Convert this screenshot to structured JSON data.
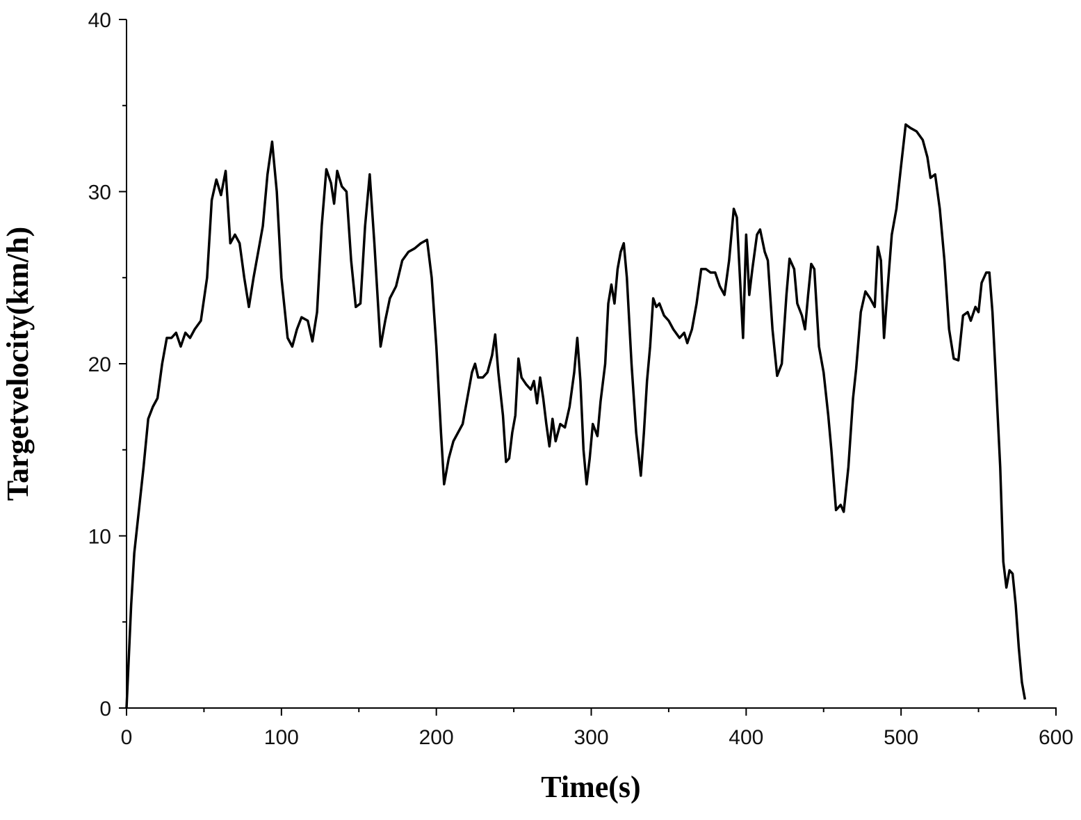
{
  "chart_data": {
    "type": "line",
    "x_label": "Time(s)",
    "y_label": "Targetvelocity(km/h)",
    "color": "#000000",
    "xlim": [
      0,
      600
    ],
    "xticks": [
      0,
      100,
      200,
      300,
      400,
      500,
      600
    ],
    "xminorticks": [
      50,
      150,
      250,
      350,
      450,
      550
    ],
    "ylim": [
      0,
      40
    ],
    "yticks": [
      0,
      10,
      20,
      30,
      40
    ],
    "yminorticks": [
      5,
      15,
      25,
      35
    ],
    "x": [
      0,
      1,
      3,
      5,
      8,
      11,
      14,
      17,
      20,
      23,
      26,
      29,
      32,
      35,
      38,
      41,
      44,
      48,
      52,
      55,
      58,
      61,
      64,
      67,
      70,
      73,
      76,
      79,
      82,
      85,
      88,
      91,
      94,
      97,
      100,
      104,
      107,
      110,
      113,
      117,
      120,
      123,
      126,
      129,
      132,
      134,
      136,
      139,
      142,
      145,
      148,
      151,
      154,
      157,
      160,
      164,
      167,
      170,
      174,
      178,
      182,
      186,
      190,
      194,
      197,
      200,
      203,
      205,
      208,
      211,
      214,
      217,
      220,
      223,
      225,
      227,
      230,
      233,
      236,
      238,
      240,
      243,
      245,
      247,
      249,
      251,
      253,
      255,
      258,
      261,
      263,
      265,
      267,
      269,
      271,
      273,
      275,
      277,
      280,
      283,
      286,
      289,
      291,
      293,
      295,
      297,
      299,
      301,
      304,
      306,
      309,
      311,
      313,
      315,
      317,
      319,
      321,
      323,
      326,
      329,
      332,
      334,
      336,
      338,
      340,
      342,
      344,
      347,
      350,
      353,
      357,
      360,
      362,
      365,
      368,
      371,
      374,
      377,
      380,
      383,
      386,
      389,
      392,
      394,
      396,
      398,
      400,
      402,
      404,
      407,
      409,
      412,
      414,
      417,
      420,
      423,
      426,
      428,
      431,
      433,
      436,
      438,
      440,
      442,
      444,
      447,
      450,
      453,
      455,
      458,
      461,
      463,
      466,
      469,
      471,
      474,
      477,
      480,
      483,
      485,
      487,
      489,
      491,
      494,
      497,
      500,
      503,
      506,
      510,
      514,
      517,
      519,
      522,
      525,
      528,
      531,
      534,
      537,
      540,
      543,
      545,
      548,
      550,
      552,
      555,
      557,
      559,
      561,
      564,
      566,
      568,
      570,
      572,
      574,
      576,
      578,
      580
    ],
    "values": [
      0,
      2,
      6,
      9,
      11.5,
      14,
      16.8,
      17.5,
      18,
      20,
      21.5,
      21.5,
      21.8,
      21,
      21.8,
      21.5,
      22,
      22.5,
      25,
      29.5,
      30.7,
      29.8,
      31.2,
      27,
      27.5,
      27,
      25,
      23.3,
      25,
      26.5,
      28,
      31,
      32.9,
      30,
      25,
      21.5,
      21,
      22,
      22.7,
      22.5,
      21.3,
      23,
      28,
      31.3,
      30.5,
      29.3,
      31.2,
      30.3,
      30,
      26,
      23.3,
      23.5,
      28,
      31,
      27,
      21,
      22.5,
      23.8,
      24.5,
      26,
      26.5,
      26.7,
      27,
      27.2,
      25,
      21,
      16,
      13,
      14.5,
      15.5,
      16,
      16.5,
      18,
      19.5,
      20,
      19.2,
      19.2,
      19.5,
      20.5,
      21.7,
      19.5,
      17,
      14.3,
      14.5,
      16,
      17,
      20.3,
      19.2,
      18.8,
      18.5,
      19,
      17.7,
      19.2,
      18,
      16.5,
      15.2,
      16.8,
      15.5,
      16.5,
      16.3,
      17.5,
      19.5,
      21.5,
      19,
      15,
      13,
      14.5,
      16.5,
      15.8,
      17.8,
      20,
      23.5,
      24.6,
      23.5,
      25.5,
      26.5,
      27,
      25,
      20,
      16,
      13.5,
      16,
      19,
      21,
      23.8,
      23.3,
      23.5,
      22.8,
      22.5,
      22,
      21.5,
      21.8,
      21.2,
      22,
      23.5,
      25.5,
      25.5,
      25.3,
      25.3,
      24.5,
      24,
      26,
      29,
      28.5,
      25,
      21.5,
      27.5,
      24,
      25.5,
      27.5,
      27.8,
      26.5,
      26,
      22,
      19.3,
      20,
      24,
      26.1,
      25.5,
      23.5,
      22.8,
      22,
      24,
      25.8,
      25.5,
      21,
      19.5,
      17,
      15,
      11.5,
      11.8,
      11.4,
      14,
      18,
      19.7,
      23,
      24.2,
      23.8,
      23.3,
      26.8,
      26,
      21.5,
      24,
      27.5,
      29,
      31.5,
      33.9,
      33.7,
      33.5,
      33,
      32,
      30.8,
      31,
      29,
      26,
      22,
      20.3,
      20.2,
      22.8,
      23,
      22.5,
      23.3,
      23,
      24.7,
      25.3,
      25.3,
      23,
      19.5,
      14,
      8.5,
      7,
      8,
      7.8,
      6,
      3.5,
      1.5,
      0.5
    ]
  }
}
